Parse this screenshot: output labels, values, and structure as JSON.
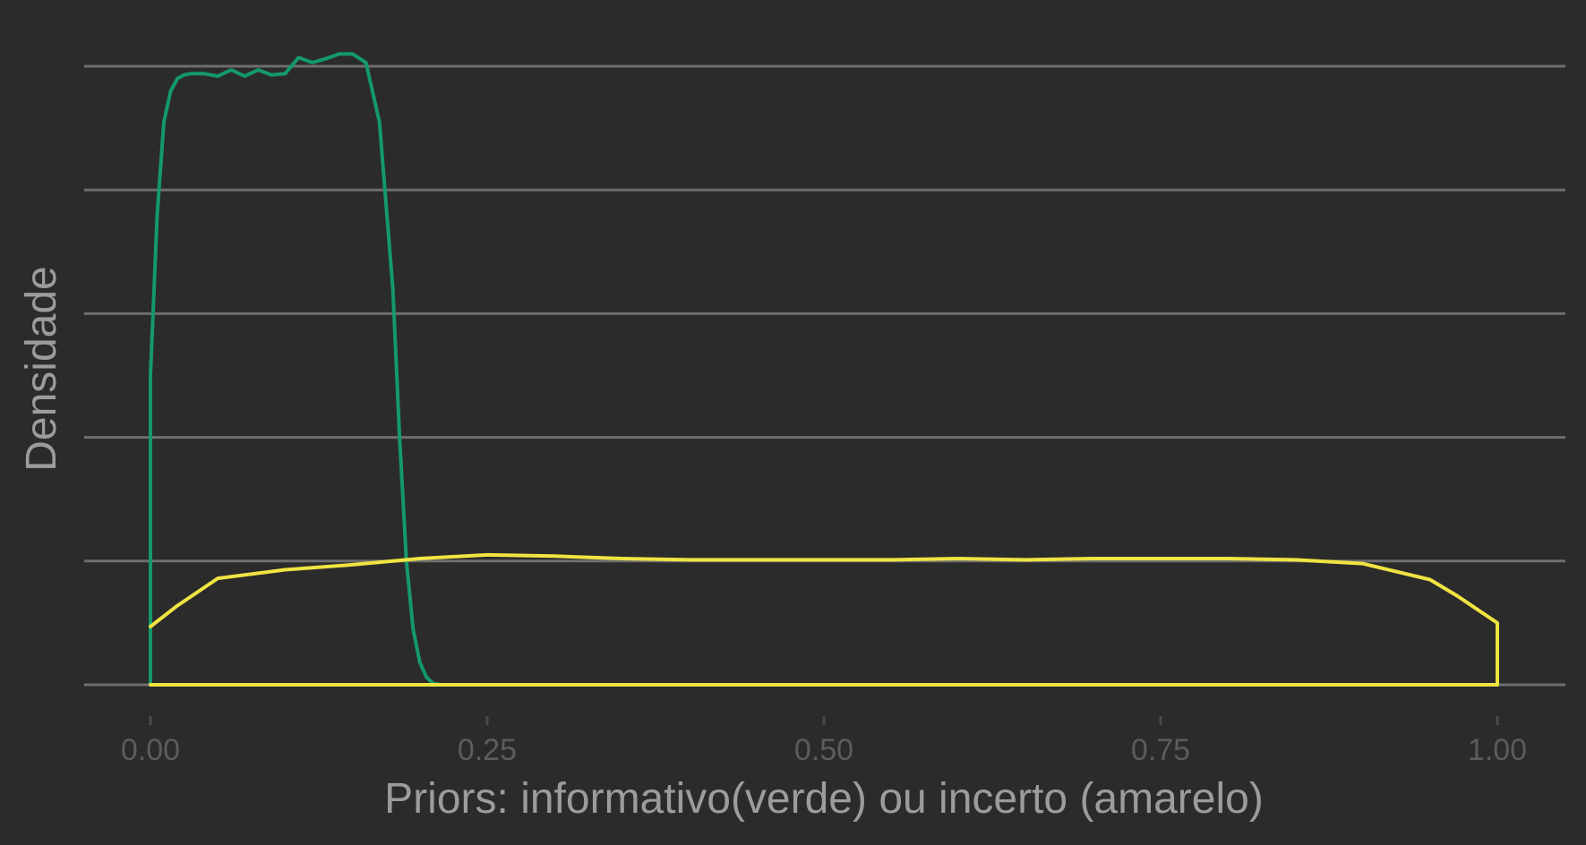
{
  "chart_data": {
    "type": "line",
    "title": "",
    "xlabel": "Priors: informativo(verde) ou incerto (amarelo)",
    "ylabel": "Densidade",
    "xlim": [
      -0.05,
      1.05
    ],
    "ylim": [
      0,
      5
    ],
    "x_ticks": [
      0.0,
      0.25,
      0.5,
      0.75,
      1.0
    ],
    "x_tick_labels": [
      "0.00",
      "0.25",
      "0.50",
      "0.75",
      "1.00"
    ],
    "y_gridlines": [
      0,
      1,
      2,
      3,
      4,
      5
    ],
    "y_tick_labels_visible": false,
    "grid": "horizontal",
    "legend": "none",
    "colors": {
      "background": "#2b2b2b",
      "gridline": "#6e6e6e",
      "informativo": "#14996a",
      "incerto": "#f0e442"
    },
    "series": [
      {
        "color": "#14996a",
        "x": [
          0.0,
          0.0,
          0.005,
          0.01,
          0.015,
          0.02,
          0.025,
          0.03,
          0.04,
          0.05,
          0.06,
          0.07,
          0.08,
          0.09,
          0.1,
          0.11,
          0.12,
          0.13,
          0.14,
          0.15,
          0.16,
          0.17,
          0.18,
          0.185,
          0.19,
          0.195,
          0.2,
          0.205,
          0.21,
          0.215,
          0.22,
          0.225,
          0.23,
          1.0,
          0.0
        ],
        "y": [
          0.0,
          2.5,
          3.8,
          4.55,
          4.8,
          4.9,
          4.93,
          4.94,
          4.94,
          4.92,
          4.97,
          4.92,
          4.97,
          4.93,
          4.94,
          5.07,
          5.03,
          5.06,
          5.1,
          5.1,
          5.03,
          4.55,
          3.2,
          2.0,
          1.0,
          0.45,
          0.18,
          0.06,
          0.01,
          0.0,
          0.0,
          0.0,
          0.0,
          0.0,
          0.0
        ]
      },
      {
        "color": "#f0e442",
        "x": [
          0.0,
          0.02,
          0.05,
          0.1,
          0.15,
          0.2,
          0.25,
          0.3,
          0.35,
          0.4,
          0.45,
          0.5,
          0.55,
          0.6,
          0.65,
          0.7,
          0.75,
          0.8,
          0.85,
          0.9,
          0.95,
          0.97,
          1.0,
          1.0,
          0.0
        ],
        "y": [
          0.47,
          0.64,
          0.86,
          0.93,
          0.97,
          1.02,
          1.05,
          1.04,
          1.02,
          1.01,
          1.01,
          1.01,
          1.01,
          1.02,
          1.01,
          1.02,
          1.02,
          1.02,
          1.01,
          0.98,
          0.85,
          0.72,
          0.5,
          0.0,
          0.0
        ]
      }
    ]
  }
}
